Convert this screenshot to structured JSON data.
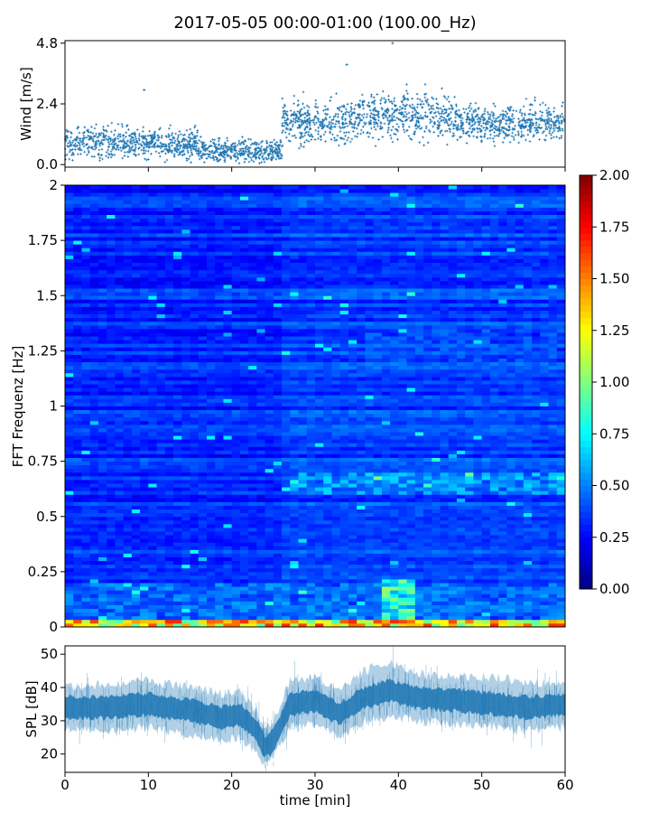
{
  "title": "2017-05-05 00:00-01:00 (100.00_Hz)",
  "chart_data": [
    {
      "type": "scatter",
      "ylabel": "Wind [m/s]",
      "xlabel": "",
      "xlim": [
        0,
        60
      ],
      "ylim": [
        -0.1,
        4.9
      ],
      "yticks": [
        "0.0",
        "2.4",
        "4.8"
      ],
      "ytick_values": [
        0.0,
        2.4,
        4.8
      ],
      "marker": "+",
      "color": "#1f77b4",
      "segments": [
        {
          "x0": 0,
          "x1": 16,
          "mean": 0.85,
          "spread": 0.3
        },
        {
          "x0": 16,
          "x1": 26,
          "mean": 0.55,
          "spread": 0.22
        },
        {
          "x0": 26,
          "x1": 35,
          "mean": 1.7,
          "spread": 0.4
        },
        {
          "x0": 35,
          "x1": 47,
          "mean": 1.9,
          "spread": 0.45
        },
        {
          "x0": 47,
          "x1": 60,
          "mean": 1.65,
          "spread": 0.35
        }
      ],
      "outliers": [
        {
          "x": 9.5,
          "y": 2.95
        },
        {
          "x": 33.8,
          "y": 3.95
        },
        {
          "x": 39.3,
          "y": 4.8
        }
      ]
    },
    {
      "type": "heatmap",
      "xlabel": "",
      "ylabel": "FFT Frequenz [Hz]",
      "xlim": [
        0,
        60
      ],
      "ylim": [
        0,
        2
      ],
      "yticks": [
        "0",
        "0.25",
        "0.5",
        "0.75",
        "1",
        "1.25",
        "1.5",
        "1.75",
        "2"
      ],
      "ytick_values": [
        0,
        0.25,
        0.5,
        0.75,
        1,
        1.25,
        1.5,
        1.75,
        2
      ],
      "colormap": "jet",
      "colorbar": {
        "vmin": 0.0,
        "vmax": 2.0,
        "ticks": [
          "0.00",
          "0.25",
          "0.50",
          "0.75",
          "1.00",
          "1.25",
          "1.50",
          "1.75",
          "2.00"
        ],
        "tick_values": [
          0,
          0.25,
          0.5,
          0.75,
          1.0,
          1.25,
          1.5,
          1.75,
          2.0
        ]
      },
      "features": [
        {
          "x0": 0,
          "x1": 60,
          "f0": 0,
          "f1": 0.03,
          "level": 1.6
        },
        {
          "x0": 0,
          "x1": 60,
          "f0": 0.03,
          "f1": 0.2,
          "level": 0.55
        },
        {
          "x0": 38,
          "x1": 42,
          "f0": 0.03,
          "f1": 0.22,
          "level": 1.0
        },
        {
          "x0": 27,
          "x1": 60,
          "f0": 0.6,
          "f1": 0.7,
          "level": 0.65
        },
        {
          "x0": 36,
          "x1": 60,
          "f0": 1.2,
          "f1": 1.35,
          "level": 0.45
        }
      ]
    },
    {
      "type": "line",
      "xlabel": "time [min]",
      "ylabel": "SPL [dB]",
      "xlim": [
        0,
        60
      ],
      "ylim": [
        14.5,
        52.5
      ],
      "xticks": [
        "0",
        "10",
        "20",
        "30",
        "40",
        "50",
        "60"
      ],
      "xtick_values": [
        0,
        10,
        20,
        30,
        40,
        50,
        60
      ],
      "yticks": [
        "20",
        "30",
        "40",
        "50"
      ],
      "ytick_values": [
        20,
        30,
        40,
        50
      ],
      "color": "#1f77b4",
      "envelope": [
        {
          "x": 0,
          "mean": 34,
          "low": 28,
          "high": 40
        },
        {
          "x": 5,
          "mean": 34,
          "low": 27,
          "high": 41
        },
        {
          "x": 10,
          "mean": 35,
          "low": 28,
          "high": 42
        },
        {
          "x": 15,
          "mean": 33,
          "low": 26,
          "high": 40
        },
        {
          "x": 19,
          "mean": 31,
          "low": 24,
          "high": 38
        },
        {
          "x": 21,
          "mean": 32,
          "low": 25,
          "high": 39
        },
        {
          "x": 23,
          "mean": 27,
          "low": 20,
          "high": 33
        },
        {
          "x": 24,
          "mean": 22,
          "low": 17,
          "high": 27
        },
        {
          "x": 25,
          "mean": 24,
          "low": 19,
          "high": 30
        },
        {
          "x": 27,
          "mean": 35,
          "low": 28,
          "high": 42
        },
        {
          "x": 30,
          "mean": 36,
          "low": 29,
          "high": 43
        },
        {
          "x": 33,
          "mean": 32,
          "low": 25,
          "high": 39
        },
        {
          "x": 36,
          "mean": 37,
          "low": 30,
          "high": 45
        },
        {
          "x": 39,
          "mean": 39,
          "low": 31,
          "high": 48
        },
        {
          "x": 42,
          "mean": 37,
          "low": 30,
          "high": 44
        },
        {
          "x": 47,
          "mean": 36,
          "low": 29,
          "high": 43
        },
        {
          "x": 52,
          "mean": 35,
          "low": 28,
          "high": 43
        },
        {
          "x": 56,
          "mean": 34,
          "low": 27,
          "high": 41
        },
        {
          "x": 60,
          "mean": 35,
          "low": 28,
          "high": 42
        }
      ]
    }
  ]
}
